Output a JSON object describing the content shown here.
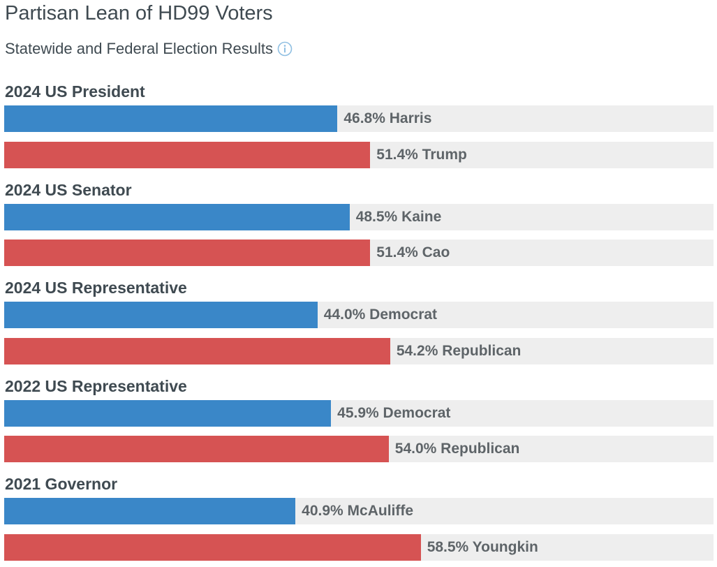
{
  "header": {
    "title": "Partisan Lean of HD99 Voters",
    "subtitle": "Statewide and Federal Election Results",
    "info_icon": "info-circle-icon"
  },
  "colors": {
    "dem": "#3a87c8",
    "rep": "#d65353",
    "track": "#eeeeee"
  },
  "chart_data": {
    "type": "bar",
    "orientation": "horizontal",
    "xlim": [
      0,
      100
    ],
    "groups": [
      {
        "title": "2024 US President",
        "bars": [
          {
            "party": "dem",
            "value": 46.8,
            "label": "46.8% Harris"
          },
          {
            "party": "rep",
            "value": 51.4,
            "label": "51.4% Trump"
          }
        ]
      },
      {
        "title": "2024 US Senator",
        "bars": [
          {
            "party": "dem",
            "value": 48.5,
            "label": "48.5% Kaine"
          },
          {
            "party": "rep",
            "value": 51.4,
            "label": "51.4% Cao"
          }
        ]
      },
      {
        "title": "2024 US Representative",
        "bars": [
          {
            "party": "dem",
            "value": 44.0,
            "label": "44.0% Democrat"
          },
          {
            "party": "rep",
            "value": 54.2,
            "label": "54.2% Republican"
          }
        ]
      },
      {
        "title": "2022 US Representative",
        "bars": [
          {
            "party": "dem",
            "value": 45.9,
            "label": "45.9% Democrat"
          },
          {
            "party": "rep",
            "value": 54.0,
            "label": "54.0% Republican"
          }
        ]
      },
      {
        "title": "2021 Governor",
        "bars": [
          {
            "party": "dem",
            "value": 40.9,
            "label": "40.9% McAuliffe"
          },
          {
            "party": "rep",
            "value": 58.5,
            "label": "58.5% Youngkin"
          }
        ]
      }
    ]
  }
}
